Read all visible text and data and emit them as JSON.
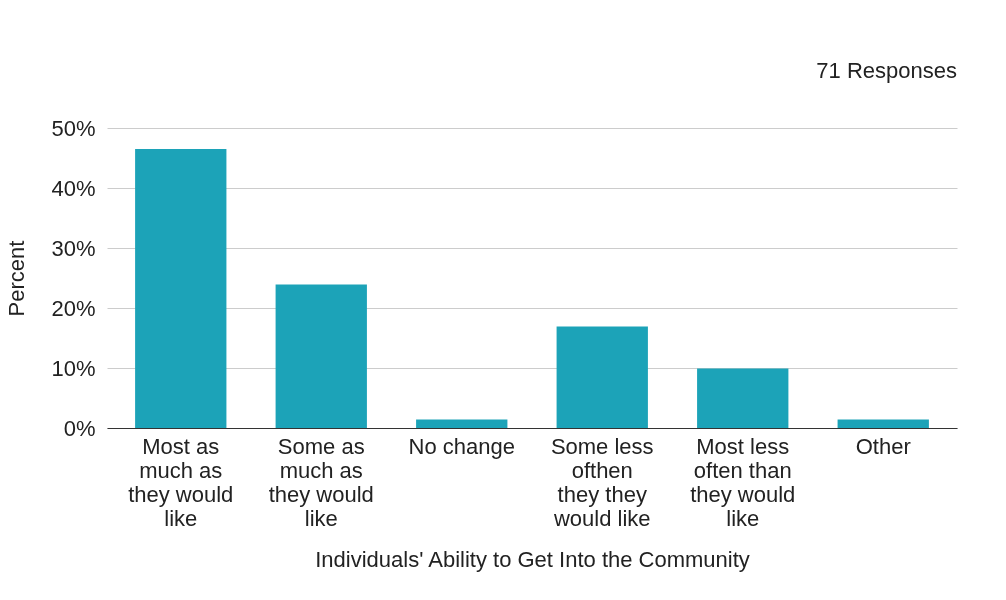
{
  "chart_data": {
    "type": "bar",
    "xlabel": "Individuals' Ability to Get Into the Community",
    "ylabel": "Percent",
    "annotations": [
      "71 Responses"
    ],
    "categories": [
      "Most as much as they would like",
      "Some as much as they would like",
      "No change",
      "Some less ofthen they they would like",
      "Most less often than they would like",
      "Other"
    ],
    "values": [
      46.5,
      23.9,
      1.4,
      16.9,
      9.9,
      1.4
    ],
    "color": "#1ca3b8",
    "ylim": [
      0,
      50
    ],
    "yticks": [
      {
        "value": 0,
        "label": "0%"
      },
      {
        "value": 10,
        "label": "10%"
      },
      {
        "value": 20,
        "label": "20%"
      },
      {
        "value": 30,
        "label": "30%"
      },
      {
        "value": 40,
        "label": "40%"
      },
      {
        "value": 50,
        "label": "50%"
      }
    ],
    "grid": "y"
  }
}
